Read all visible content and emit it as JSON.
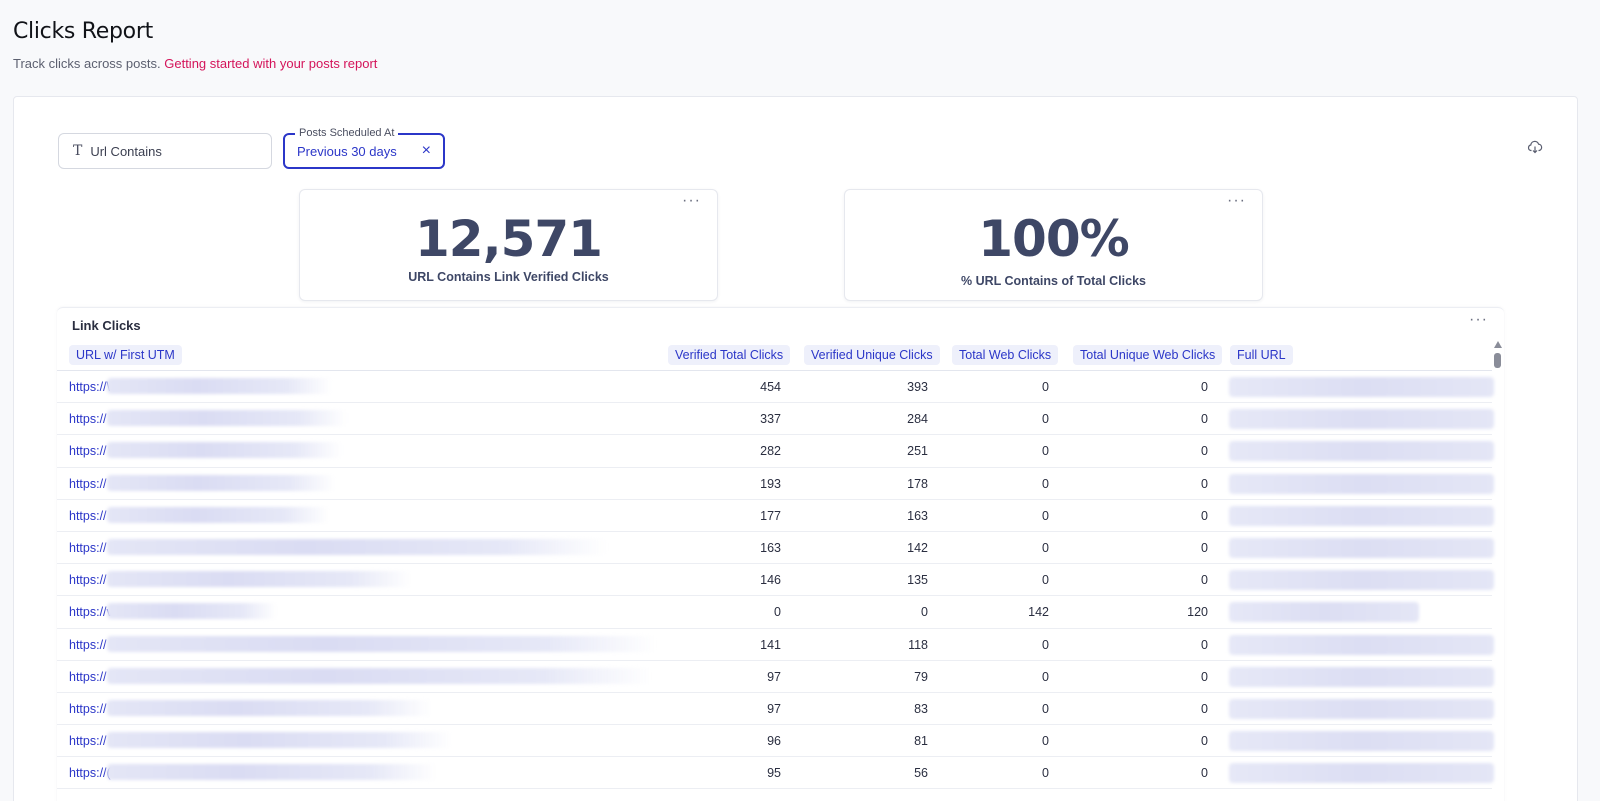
{
  "header": {
    "title": "Clicks Report",
    "subtitle_text": "Track clicks across posts.",
    "subtitle_link": "Getting started with your posts report"
  },
  "filters": {
    "url_filter_label": "Url Contains",
    "date_filter_floating_label": "Posts Scheduled At",
    "date_filter_value": "Previous 30 days",
    "clear_icon": "×"
  },
  "kpis": [
    {
      "value": "12,571",
      "label": "URL Contains Link Verified Clicks"
    },
    {
      "value": "100%",
      "label": "% URL Contains of Total Clicks"
    }
  ],
  "table": {
    "title": "Link Clicks",
    "columns": [
      "URL w/ First UTM",
      "Verified Total Clicks",
      "Verified Unique Clicks",
      "Total Web Clicks",
      "Total Unique Web Clicks",
      "Full URL"
    ],
    "rows": [
      {
        "url": "https://\\",
        "verified_total": "454",
        "verified_unique": "393",
        "web": "0",
        "unique_web": "0"
      },
      {
        "url": "https://",
        "verified_total": "337",
        "verified_unique": "284",
        "web": "0",
        "unique_web": "0"
      },
      {
        "url": "https://",
        "verified_total": "282",
        "verified_unique": "251",
        "web": "0",
        "unique_web": "0"
      },
      {
        "url": "https://",
        "verified_total": "193",
        "verified_unique": "178",
        "web": "0",
        "unique_web": "0"
      },
      {
        "url": "https://",
        "verified_total": "177",
        "verified_unique": "163",
        "web": "0",
        "unique_web": "0"
      },
      {
        "url": "https://",
        "verified_total": "163",
        "verified_unique": "142",
        "web": "0",
        "unique_web": "0"
      },
      {
        "url": "https://",
        "verified_total": "146",
        "verified_unique": "135",
        "web": "0",
        "unique_web": "0"
      },
      {
        "url": "https://v",
        "verified_total": "0",
        "verified_unique": "0",
        "web": "142",
        "unique_web": "120"
      },
      {
        "url": "https://",
        "verified_total": "141",
        "verified_unique": "118",
        "web": "0",
        "unique_web": "0"
      },
      {
        "url": "https://",
        "verified_total": "97",
        "verified_unique": "79",
        "web": "0",
        "unique_web": "0"
      },
      {
        "url": "https://",
        "verified_total": "97",
        "verified_unique": "83",
        "web": "0",
        "unique_web": "0"
      },
      {
        "url": "https://",
        "verified_total": "96",
        "verified_unique": "81",
        "web": "0",
        "unique_web": "0"
      },
      {
        "url": "https://(",
        "verified_total": "95",
        "verified_unique": "56",
        "web": "0",
        "unique_web": "0"
      }
    ]
  },
  "icons": {
    "more": "···",
    "download": "cloud-download-icon",
    "text_type": "T"
  },
  "colors": {
    "accent": "#2b36c8",
    "link_pink": "#d4145a",
    "kpi_text": "#3e4766"
  }
}
